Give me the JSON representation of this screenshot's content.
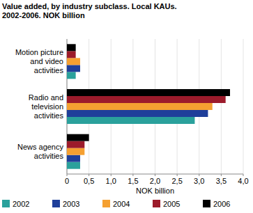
{
  "chart_data": {
    "type": "bar",
    "orientation": "horizontal",
    "title": "Value added, by industry subclass. Local KAUs. 2002-2006. NOK billion",
    "xlabel": "NOK billion",
    "categories": [
      "Motion picture and video activities",
      "Radio and television activities",
      "News agency activities"
    ],
    "series": [
      {
        "name": "2002",
        "color": "#2aa19c",
        "values": [
          0.2,
          2.9,
          0.3
        ]
      },
      {
        "name": "2003",
        "color": "#1f3f9a",
        "values": [
          0.3,
          3.2,
          0.3
        ]
      },
      {
        "name": "2004",
        "color": "#f5a031",
        "values": [
          0.3,
          3.3,
          0.4
        ]
      },
      {
        "name": "2005",
        "color": "#9c1b2b",
        "values": [
          0.2,
          3.6,
          0.4
        ]
      },
      {
        "name": "2006",
        "color": "#000000",
        "values": [
          0.2,
          3.7,
          0.5
        ]
      }
    ],
    "xlim": [
      0,
      4
    ],
    "xticks": [
      0,
      {
        "value": 0.5,
        "label": "0,5"
      },
      {
        "value": 1,
        "label": "1,0"
      },
      {
        "value": 1.5,
        "label": "1,5"
      },
      {
        "value": 2,
        "label": "2,0"
      },
      {
        "value": 2.5,
        "label": "2,5"
      },
      {
        "value": 3,
        "label": "3,0"
      },
      {
        "value": 3.5,
        "label": "3,5"
      },
      {
        "value": 4,
        "label": "4,0"
      }
    ],
    "grid": true,
    "legend": "bottom"
  }
}
